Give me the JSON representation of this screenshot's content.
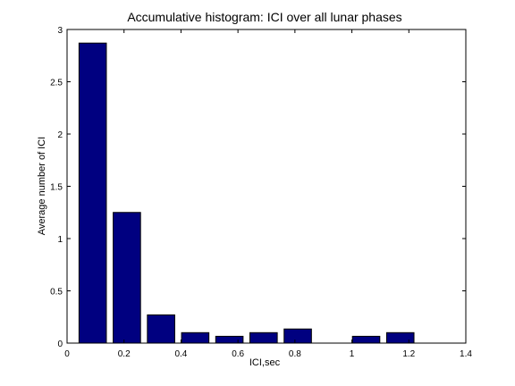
{
  "chart_data": {
    "type": "bar",
    "title": "Accumulative histogram: ICI over all lunar phases",
    "xlabel": "ICI,sec",
    "ylabel": "Average number of ICI",
    "xlim": [
      0,
      1.4
    ],
    "ylim": [
      0,
      3
    ],
    "xticks": [
      0,
      0.2,
      0.4,
      0.6,
      0.8,
      1,
      1.2,
      1.4
    ],
    "yticks": [
      0,
      0.5,
      1,
      1.5,
      2,
      2.5,
      3
    ],
    "bin_width": 0.12,
    "x": [
      0.09,
      0.21,
      0.33,
      0.45,
      0.57,
      0.69,
      0.81,
      0.93,
      1.05,
      1.17
    ],
    "values": [
      2.87,
      1.25,
      0.27,
      0.1,
      0.065,
      0.1,
      0.135,
      0,
      0.065,
      0.1
    ],
    "bar_color": "#000080",
    "grid": false
  }
}
